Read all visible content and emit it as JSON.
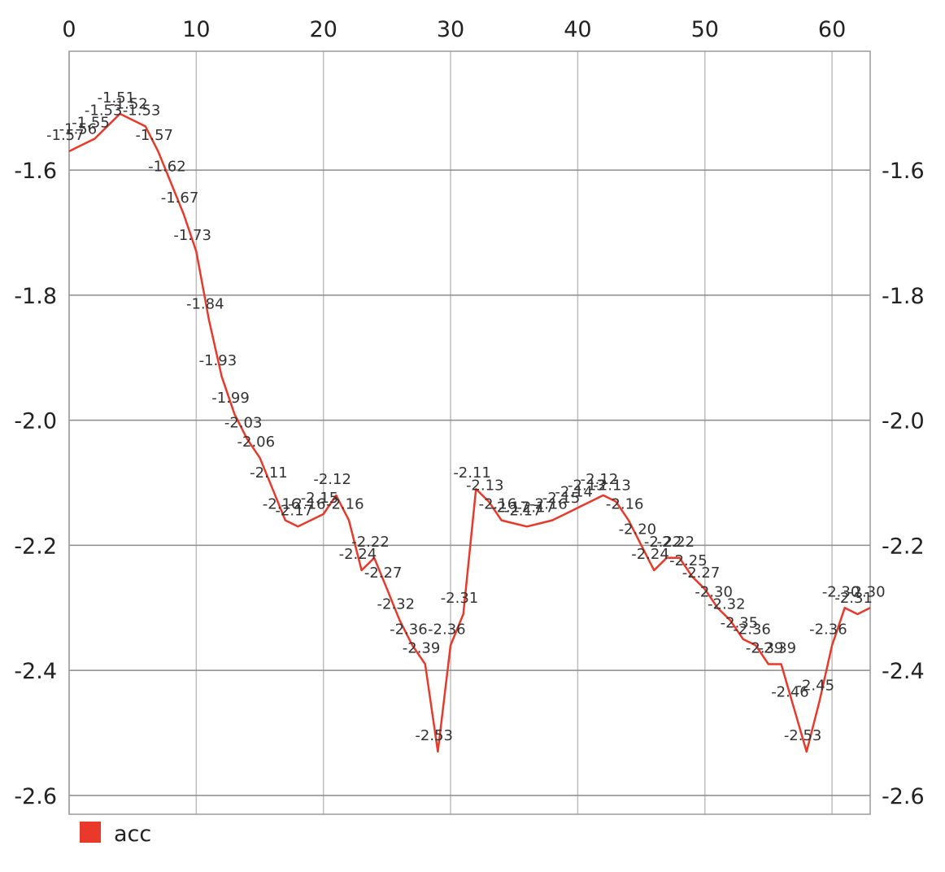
{
  "chart_data": {
    "type": "line",
    "x_ticks": [
      0,
      10,
      20,
      30,
      40,
      50,
      60
    ],
    "y_ticks": [
      -1.6,
      -1.8,
      -2.0,
      -2.2,
      -2.4,
      -2.6
    ],
    "x_tick_labels": [
      "0",
      "10",
      "20",
      "30",
      "40",
      "50",
      "60"
    ],
    "y_tick_labels": [
      "-1.6",
      "-1.8",
      "-2.0",
      "-2.2",
      "-2.4",
      "-2.6"
    ],
    "xlim": [
      0,
      63
    ],
    "ylim": [
      -2.63,
      -1.41
    ],
    "x_axis_position": "top",
    "y_axis_position": "both",
    "grid": true,
    "legend_position": "bottom-left",
    "x": [
      0,
      1,
      2,
      3,
      4,
      5,
      6,
      7,
      8,
      9,
      10,
      11,
      12,
      13,
      14,
      15,
      16,
      17,
      18,
      19,
      20,
      21,
      22,
      23,
      24,
      25,
      26,
      27,
      28,
      29,
      30,
      31,
      32,
      33,
      34,
      35,
      36,
      37,
      38,
      39,
      40,
      41,
      42,
      43,
      44,
      45,
      46,
      47,
      48,
      49,
      50,
      51,
      52,
      53,
      54,
      55,
      56,
      57,
      58,
      59,
      60,
      61,
      62,
      63
    ],
    "series": [
      {
        "name": "acc",
        "color": "#e8392b",
        "values": [
          -1.57,
          -1.56,
          -1.55,
          -1.53,
          -1.51,
          -1.52,
          -1.53,
          -1.57,
          -1.62,
          -1.67,
          -1.73,
          -1.84,
          -1.93,
          -1.99,
          -2.03,
          -2.06,
          -2.11,
          -2.16,
          -2.17,
          -2.16,
          -2.15,
          -2.12,
          -2.16,
          -2.24,
          -2.22,
          -2.27,
          -2.32,
          -2.36,
          -2.39,
          -2.53,
          -2.36,
          -2.31,
          -2.11,
          -2.13,
          -2.16,
          -2.165,
          -2.17,
          -2.165,
          -2.16,
          -2.15,
          -2.14,
          -2.13,
          -2.12,
          -2.13,
          -2.16,
          -2.2,
          -2.24,
          -2.22,
          -2.22,
          -2.25,
          -2.27,
          -2.3,
          -2.32,
          -2.35,
          -2.36,
          -2.39,
          -2.39,
          -2.46,
          -2.53,
          -2.45,
          -2.36,
          -2.3,
          -2.31,
          -2.3
        ]
      }
    ],
    "data_labels": [
      "-1.57",
      "-1.56",
      "-1.55",
      "-1.53",
      "-1.51",
      "-1.52",
      "-1.53",
      "-1.57",
      "-1.62",
      "-1.67",
      "-1.73",
      "-1.84",
      "-1.93",
      "-1.99",
      "-2.03",
      "-2.06",
      "-2.11",
      "-2.16",
      "-2.17",
      "-2.16",
      "-2.15",
      "-2.12",
      "-2.16",
      "-2.24",
      "-2.22",
      "-2.27",
      "-2.32",
      "-2.36",
      "-2.39",
      "-2.53",
      "-2.36",
      "-2.31",
      "-2.11",
      "-2.13",
      "-2.16",
      "-2.17",
      "-2.17",
      "-2.17",
      "-2.16",
      "-2.15",
      "-2.14",
      "-2.13",
      "-2.12",
      "-2.13",
      "-2.16",
      "-2.20",
      "-2.24",
      "-2.22",
      "-2.22",
      "-2.25",
      "-2.27",
      "-2.30",
      "-2.32",
      "-2.35",
      "-2.36",
      "-2.39",
      "-2.39",
      "-2.46",
      "-2.53",
      "-2.45",
      "-2.36",
      "-2.30",
      "-2.31",
      "-2.30"
    ]
  }
}
